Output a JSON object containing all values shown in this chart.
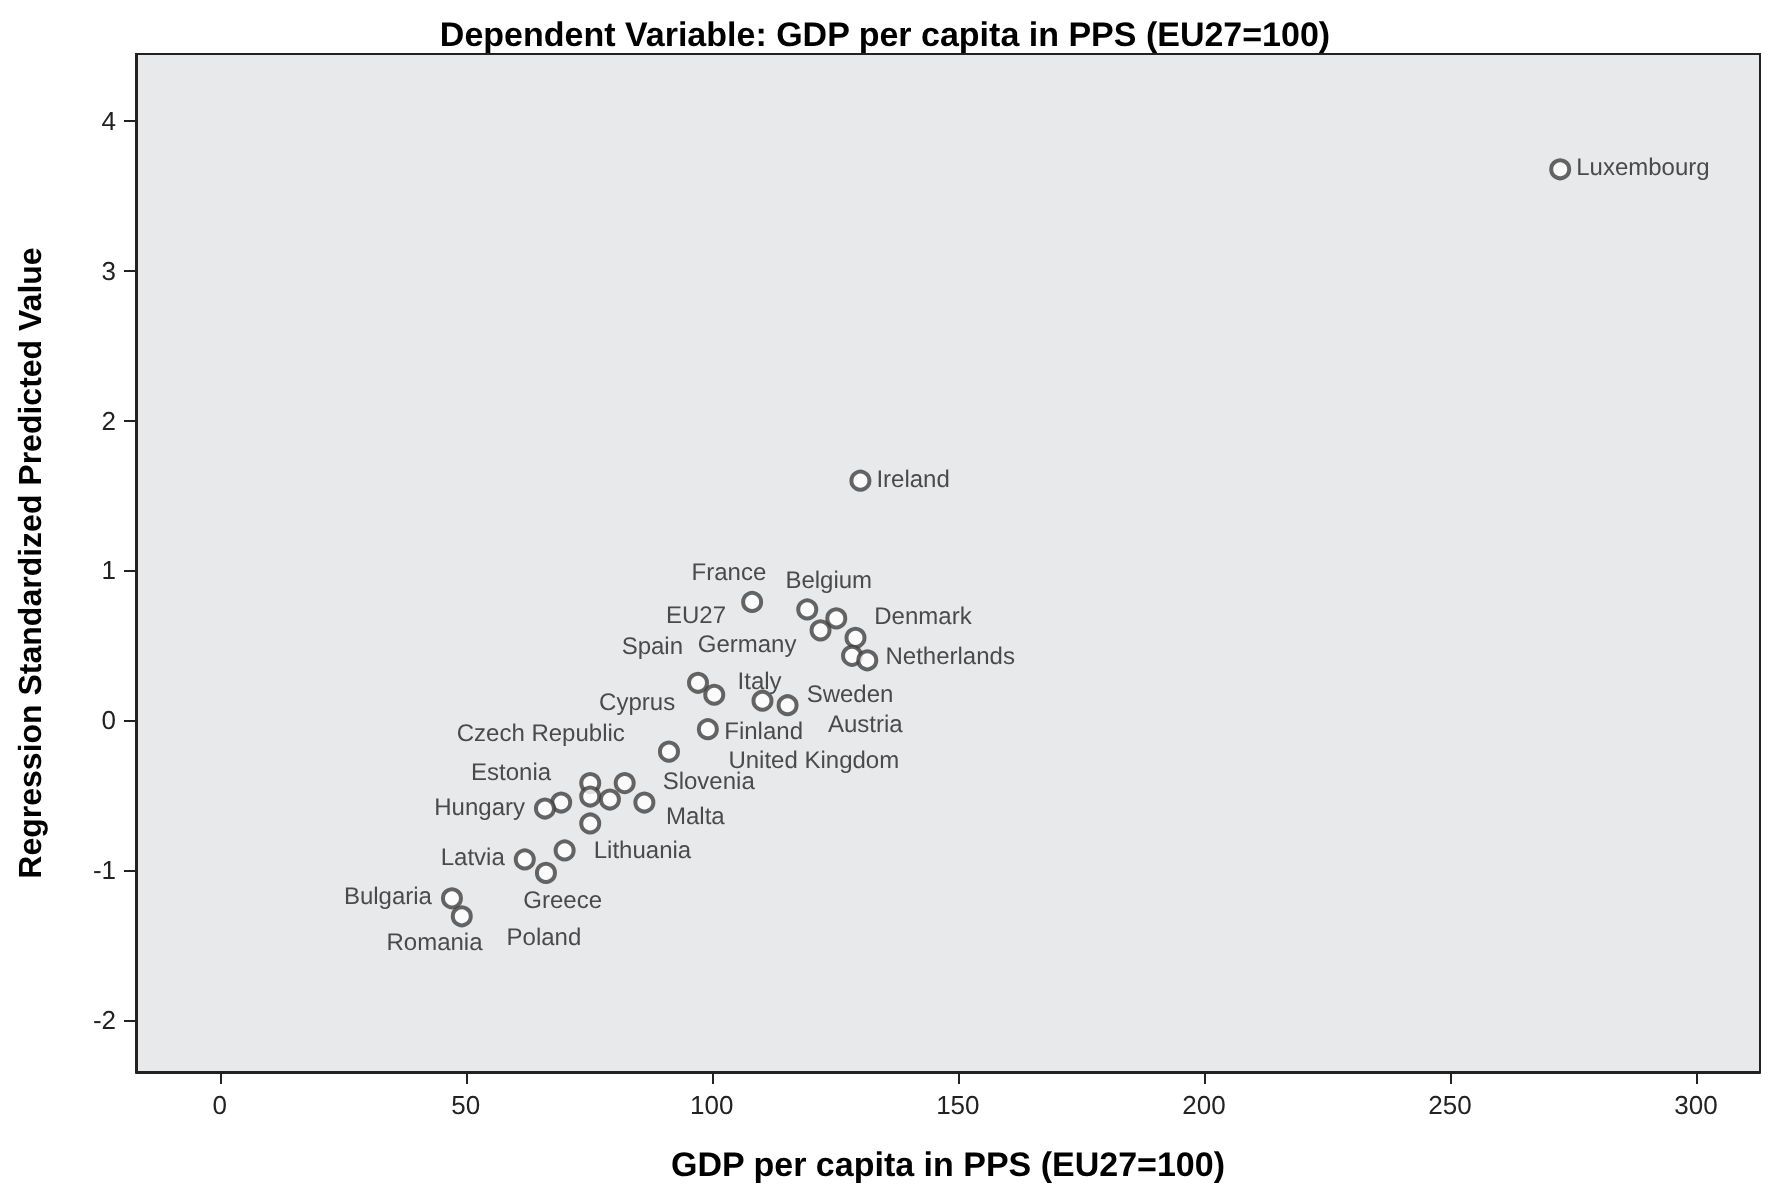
{
  "chart_data": {
    "type": "scatter",
    "title": "Dependent Variable: GDP per capita in PPS (EU27=100)",
    "xlabel": "GDP per capita in PPS (EU27=100)",
    "ylabel": "Regression Standardized Predicted Value",
    "x": [
      272.4,
      130.2,
      108.2,
      119.4,
      125.3,
      122.1,
      129.2,
      128.5,
      131.6,
      97.2,
      100.5,
      110.3,
      115.4,
      99.2,
      91.3,
      75.3,
      82.3,
      75.3,
      79.3,
      86.3,
      69.4,
      66.1,
      75.3,
      70.1,
      62.0,
      66.3,
      47.2,
      49.2
    ],
    "values": [
      3.68,
      1.6,
      0.79,
      0.74,
      0.68,
      0.6,
      0.55,
      0.43,
      0.4,
      0.25,
      0.17,
      0.13,
      0.1,
      -0.06,
      -0.21,
      -0.42,
      -0.42,
      -0.51,
      -0.53,
      -0.55,
      -0.55,
      -0.59,
      -0.69,
      -0.87,
      -0.93,
      -1.02,
      -1.19,
      -1.31
    ],
    "color": "#404040",
    "marker": "circle",
    "xlim": [
      -17,
      313
    ],
    "xticks": [
      0,
      50,
      100,
      150,
      200,
      250,
      300
    ],
    "ylim": [
      -2.35,
      4.45
    ],
    "yticks": [
      -2,
      -1,
      0,
      1,
      2,
      3,
      4
    ],
    "value_labels": [
      "Luxembourg",
      "Ireland",
      "France",
      "Belgium",
      "Denmark",
      "Germany",
      "Netherlands",
      "Sweden",
      "Austria",
      "EU27",
      "Spain",
      "United Kingdom",
      "Finland",
      "Italy",
      "Cyprus",
      "Czech Republic",
      "Slovenia",
      null,
      null,
      "Malta",
      "Estonia",
      "Hungary",
      "Lithuania",
      "Greece",
      "Latvia",
      "Poland",
      "Bulgaria",
      "Romania"
    ]
  }
}
